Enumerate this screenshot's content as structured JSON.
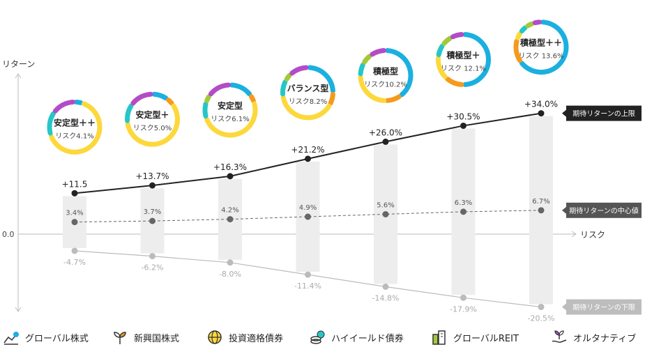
{
  "chart_data": {
    "type": "line",
    "axes": {
      "y_label": "リターン",
      "x_label": "リスク",
      "zero_label": "0.0"
    },
    "portfolios": [
      {
        "name": "安定型＋＋",
        "risk_label": "リスク4.1%",
        "upper": 11.5,
        "upper_label": "+11.5",
        "center": 3.4,
        "center_label": "3.4%",
        "lower": -4.7,
        "lower_label": "-4.7%",
        "allocation": [
          {
            "asset": "グローバル株式",
            "share": 5
          },
          {
            "asset": "新興国株式",
            "share": 0
          },
          {
            "asset": "投資適格債券",
            "share": 65
          },
          {
            "asset": "ハイイールド債券",
            "share": 15
          },
          {
            "asset": "グローバルREIT",
            "share": 0
          },
          {
            "asset": "オルタナティブ",
            "share": 15
          }
        ]
      },
      {
        "name": "安定型＋",
        "risk_label": "リスク5.0%",
        "upper": 13.7,
        "upper_label": "+13.7%",
        "center": 3.7,
        "center_label": "3.7%",
        "lower": -6.2,
        "lower_label": "-6.2%",
        "allocation": [
          {
            "asset": "グローバル株式",
            "share": 10
          },
          {
            "asset": "新興国株式",
            "share": 5
          },
          {
            "asset": "投資適格債券",
            "share": 58
          },
          {
            "asset": "ハイイールド債券",
            "share": 12
          },
          {
            "asset": "グローバルREIT",
            "share": 0
          },
          {
            "asset": "オルタナティブ",
            "share": 15
          }
        ]
      },
      {
        "name": "安定型",
        "risk_label": "リスク6.1%",
        "upper": 16.3,
        "upper_label": "+16.3%",
        "center": 4.2,
        "center_label": "4.2%",
        "lower": -8.0,
        "lower_label": "-8.0%",
        "allocation": [
          {
            "asset": "グローバル株式",
            "share": 15
          },
          {
            "asset": "新興国株式",
            "share": 5
          },
          {
            "asset": "投資適格債券",
            "share": 50
          },
          {
            "asset": "ハイイールド債券",
            "share": 10
          },
          {
            "asset": "グローバルREIT",
            "share": 5
          },
          {
            "asset": "オルタナティブ",
            "share": 15
          }
        ]
      },
      {
        "name": "バランス型",
        "risk_label": "リスク8.2%",
        "upper": 21.2,
        "upper_label": "+21.2%",
        "center": 4.9,
        "center_label": "4.9%",
        "lower": -11.4,
        "lower_label": "-11.4%",
        "allocation": [
          {
            "asset": "グローバル株式",
            "share": 25
          },
          {
            "asset": "新興国株式",
            "share": 8
          },
          {
            "asset": "投資適格債券",
            "share": 40
          },
          {
            "asset": "ハイイールド債券",
            "share": 10
          },
          {
            "asset": "グローバルREIT",
            "share": 5
          },
          {
            "asset": "オルタナティブ",
            "share": 12
          }
        ]
      },
      {
        "name": "積極型",
        "risk_label": "リスク10.2%",
        "upper": 26.0,
        "upper_label": "+26.0%",
        "center": 5.6,
        "center_label": "5.6%",
        "lower": -14.8,
        "lower_label": "-14.8%",
        "allocation": [
          {
            "asset": "グローバル株式",
            "share": 40
          },
          {
            "asset": "新興国株式",
            "share": 10
          },
          {
            "asset": "投資適格債券",
            "share": 25
          },
          {
            "asset": "ハイイールド債券",
            "share": 8
          },
          {
            "asset": "グローバルREIT",
            "share": 7
          },
          {
            "asset": "オルタナティブ",
            "share": 10
          }
        ]
      },
      {
        "name": "積極型＋",
        "risk_label": "リスク 12.1%",
        "upper": 30.5,
        "upper_label": "+30.5%",
        "center": 6.3,
        "center_label": "6.3%",
        "lower": -17.9,
        "lower_label": "-17.9%",
        "allocation": [
          {
            "asset": "グローバル株式",
            "share": 50
          },
          {
            "asset": "新興国株式",
            "share": 12
          },
          {
            "asset": "投資適格債券",
            "share": 15
          },
          {
            "asset": "ハイイールド債券",
            "share": 8
          },
          {
            "asset": "グローバルREIT",
            "share": 7
          },
          {
            "asset": "オルタナティブ",
            "share": 8
          }
        ]
      },
      {
        "name": "積極型＋＋",
        "risk_label": "リスク 13.6%",
        "upper": 34.0,
        "upper_label": "+34.0%",
        "center": 6.7,
        "center_label": "6.7%",
        "lower": -20.5,
        "lower_label": "-20.5%",
        "allocation": [
          {
            "asset": "グローバル株式",
            "share": 65
          },
          {
            "asset": "新興国株式",
            "share": 15
          },
          {
            "asset": "投資適格債券",
            "share": 5
          },
          {
            "asset": "ハイイールド債券",
            "share": 5
          },
          {
            "asset": "グローバルREIT",
            "share": 5
          },
          {
            "asset": "オルタナティブ",
            "share": 5
          }
        ]
      }
    ],
    "series_labels": {
      "upper": "期待リターンの上限",
      "center": "期待リターンの中心値",
      "lower": "期待リターンの下限"
    },
    "legend": [
      {
        "label": "グローバル株式",
        "icon": "line-chart-icon",
        "color": "#1ab0e0"
      },
      {
        "label": "新興国株式",
        "icon": "sprout-icon",
        "color": "#f59a1b"
      },
      {
        "label": "投資適格債券",
        "icon": "globe-icon",
        "color": "#fcd83c"
      },
      {
        "label": "ハイイールド債券",
        "icon": "coins-icon",
        "color": "#26c6c8"
      },
      {
        "label": "グローバルREIT",
        "icon": "buildings-icon",
        "color": "#a2c93a"
      },
      {
        "label": "オルタナティブ",
        "icon": "plant-hand-icon",
        "color": "#b34cc7"
      }
    ],
    "colors": {
      "upper_line": "#222222",
      "center_line": "#666666",
      "lower_line": "#bbbbbb",
      "band": "#ededed",
      "upper_tag": "#222222",
      "center_tag": "#555555",
      "lower_tag": "#bdbdbd"
    }
  }
}
